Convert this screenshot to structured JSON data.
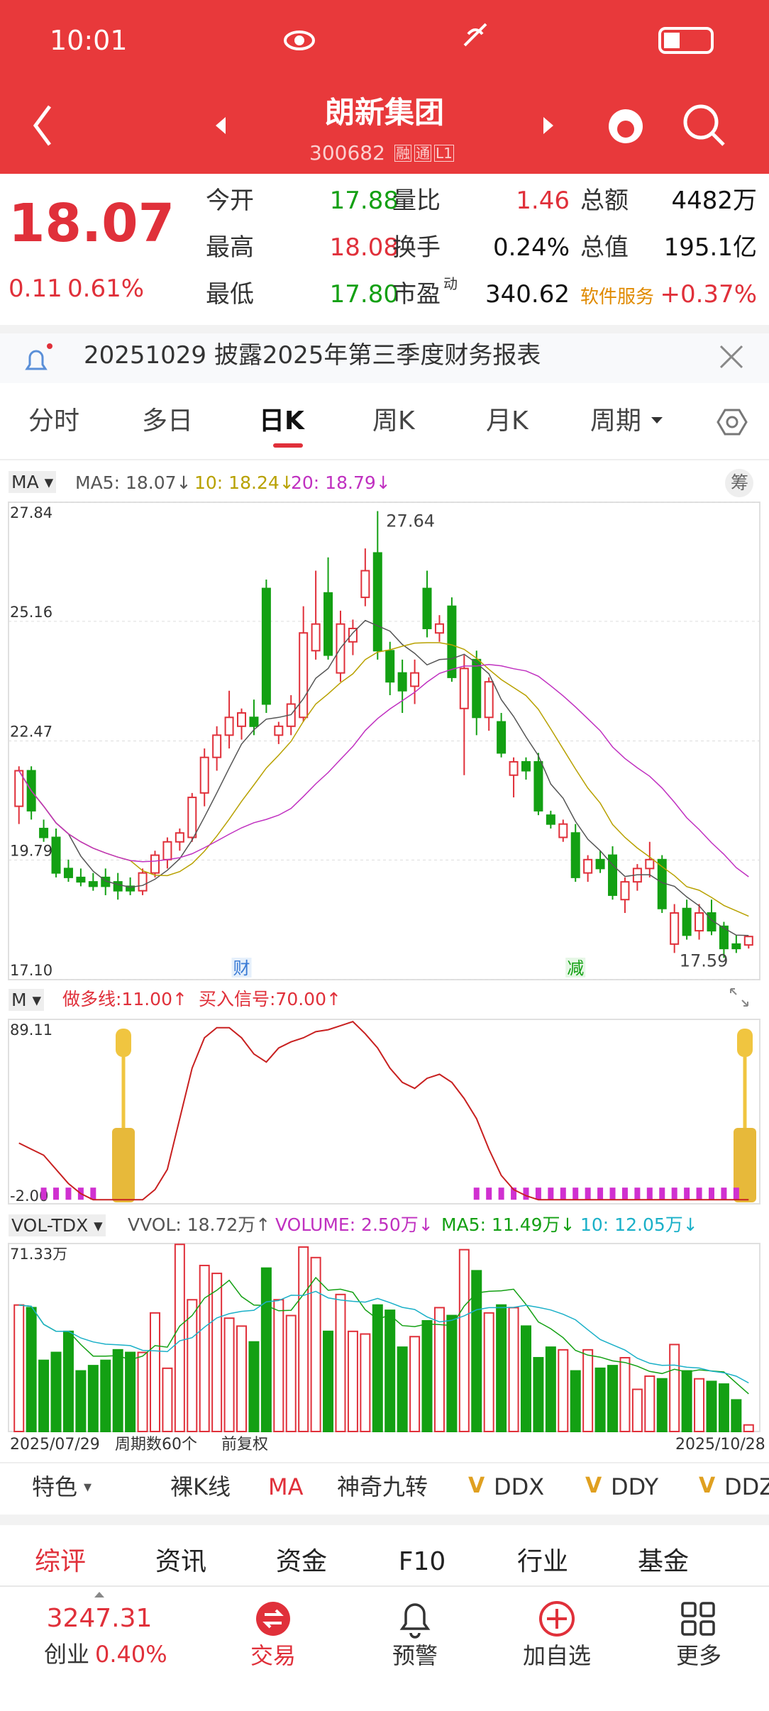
{
  "status_bar": {
    "time": "10:01"
  },
  "header": {
    "title": "朗新集团",
    "code": "300682",
    "badges": [
      "融",
      "通",
      "L1"
    ]
  },
  "quote": {
    "price": "18.07",
    "change": "0.11",
    "change_pct": "0.61%",
    "fields": [
      {
        "label": "今开",
        "value": "17.88"
      },
      {
        "label": "量比",
        "value": "1.46"
      },
      {
        "label": "总额",
        "value": "4482万"
      },
      {
        "label": "最高",
        "value": "18.08"
      },
      {
        "label": "换手",
        "value": "0.24%"
      },
      {
        "label": "总值",
        "value": "195.1亿"
      },
      {
        "label": "最低",
        "value": "17.80"
      },
      {
        "label": "市盈",
        "label_sup": "动",
        "value": "340.62"
      },
      {
        "label": "软件服务",
        "value": "+0.37%"
      }
    ]
  },
  "notice": "20251029 披露2025年第三季度财务报表",
  "tabs": [
    "分时",
    "多日",
    "日K",
    "周K",
    "月K",
    "周期"
  ],
  "chart": {
    "type": "candlestick",
    "ma_legend": {
      "label": "MA",
      "items": [
        "MA5: 18.07↓",
        "10: 18.24↓",
        "20: 18.79↓"
      ]
    },
    "chip_button": "筹",
    "ylim": [
      17.1,
      27.84
    ],
    "yticks": [
      27.84,
      25.16,
      22.47,
      19.79,
      {
        "value": 17.1,
        "label": "17.10"
      }
    ],
    "high_label": "27.64",
    "low_label": "17.59",
    "events": [
      {
        "index": 18,
        "label": "财"
      },
      {
        "index": 45,
        "label": "减"
      }
    ],
    "candles": [
      [
        21.0,
        21.9,
        20.6,
        21.8
      ],
      [
        21.8,
        21.9,
        20.7,
        20.9
      ],
      [
        20.5,
        20.7,
        20.2,
        20.3
      ],
      [
        20.3,
        20.5,
        19.4,
        19.5
      ],
      [
        19.6,
        19.8,
        19.3,
        19.4
      ],
      [
        19.4,
        19.6,
        19.2,
        19.3
      ],
      [
        19.3,
        19.5,
        19.1,
        19.2
      ],
      [
        19.4,
        19.6,
        19.0,
        19.2
      ],
      [
        19.3,
        19.5,
        18.9,
        19.1
      ],
      [
        19.2,
        19.4,
        19.0,
        19.1
      ],
      [
        19.1,
        19.6,
        19.0,
        19.5
      ],
      [
        19.5,
        20.0,
        19.4,
        19.9
      ],
      [
        19.8,
        20.3,
        19.6,
        20.2
      ],
      [
        20.2,
        20.5,
        20.0,
        20.4
      ],
      [
        20.3,
        21.3,
        20.2,
        21.2
      ],
      [
        21.3,
        22.3,
        21.0,
        22.1
      ],
      [
        22.1,
        22.8,
        21.8,
        22.6
      ],
      [
        22.6,
        23.6,
        22.3,
        23.0
      ],
      [
        22.8,
        23.2,
        22.5,
        23.1
      ],
      [
        23.0,
        23.4,
        22.6,
        22.8
      ],
      [
        25.9,
        26.1,
        23.1,
        23.3
      ],
      [
        22.6,
        22.9,
        22.4,
        22.8
      ],
      [
        22.8,
        23.5,
        22.6,
        23.3
      ],
      [
        23.0,
        25.5,
        22.9,
        24.9
      ],
      [
        24.5,
        26.3,
        24.3,
        25.1
      ],
      [
        25.8,
        26.6,
        24.3,
        24.4
      ],
      [
        24.0,
        25.4,
        23.8,
        25.1
      ],
      [
        24.7,
        25.2,
        24.4,
        25.0
      ],
      [
        25.7,
        26.8,
        25.5,
        26.3
      ],
      [
        26.7,
        27.64,
        24.3,
        24.5
      ],
      [
        24.5,
        24.7,
        23.5,
        23.8
      ],
      [
        24.0,
        24.3,
        23.1,
        23.6
      ],
      [
        23.7,
        24.3,
        23.3,
        24.0
      ],
      [
        25.9,
        26.3,
        24.8,
        25.0
      ],
      [
        24.9,
        25.3,
        24.7,
        25.1
      ],
      [
        25.5,
        25.7,
        23.8,
        23.9
      ],
      [
        23.2,
        24.4,
        21.7,
        24.1
      ],
      [
        24.3,
        24.5,
        22.6,
        23.0
      ],
      [
        23.0,
        23.9,
        22.7,
        23.8
      ],
      [
        22.9,
        23.1,
        22.1,
        22.2
      ],
      [
        21.7,
        22.1,
        21.2,
        22.0
      ],
      [
        22.0,
        22.1,
        21.6,
        21.8
      ],
      [
        22.0,
        22.2,
        20.8,
        20.9
      ],
      [
        20.8,
        20.9,
        20.5,
        20.6
      ],
      [
        20.3,
        20.7,
        20.2,
        20.6
      ],
      [
        20.4,
        20.6,
        19.3,
        19.4
      ],
      [
        19.5,
        19.9,
        19.3,
        19.8
      ],
      [
        19.8,
        20.0,
        19.5,
        19.6
      ],
      [
        19.9,
        20.1,
        18.9,
        19.0
      ],
      [
        18.9,
        19.4,
        18.6,
        19.3
      ],
      [
        19.3,
        19.7,
        19.1,
        19.6
      ],
      [
        19.6,
        20.2,
        19.4,
        19.8
      ],
      [
        19.8,
        19.9,
        18.6,
        18.7
      ],
      [
        17.9,
        18.8,
        17.7,
        18.6
      ],
      [
        18.7,
        18.9,
        18.0,
        18.1
      ],
      [
        18.2,
        18.8,
        18.0,
        18.6
      ],
      [
        18.6,
        18.9,
        18.1,
        18.2
      ],
      [
        18.3,
        18.4,
        17.59,
        17.8
      ],
      [
        17.9,
        18.1,
        17.7,
        17.8
      ],
      [
        17.88,
        18.08,
        17.8,
        18.07
      ]
    ]
  },
  "m_indicator": {
    "label": "M",
    "legend": [
      "做多线:11.00↑",
      "买入信号:70.00↑"
    ],
    "ylim": [
      -2,
      89.11
    ],
    "yticks": [
      89.11,
      {
        "value": -2,
        "label": "-2.00"
      }
    ],
    "line": [
      28,
      25,
      22,
      15,
      8,
      3,
      0,
      0,
      0,
      0,
      0,
      5,
      15,
      40,
      65,
      80,
      85,
      85,
      80,
      72,
      68,
      75,
      78,
      80,
      83,
      84,
      86,
      88,
      82,
      75,
      65,
      58,
      55,
      60,
      62,
      58,
      50,
      40,
      25,
      12,
      5,
      2,
      0,
      0,
      0,
      0,
      0,
      0,
      0,
      0,
      0,
      0,
      0,
      0,
      0,
      0,
      0,
      0,
      0,
      0
    ],
    "bars": [
      null,
      null,
      6,
      6,
      6,
      6,
      6,
      null,
      null,
      null,
      null,
      null,
      null,
      null,
      null,
      null,
      null,
      null,
      null,
      null,
      null,
      null,
      null,
      null,
      null,
      null,
      null,
      null,
      null,
      null,
      null,
      null,
      null,
      null,
      null,
      null,
      null,
      6,
      6,
      6,
      6,
      6,
      6,
      6,
      6,
      6,
      6,
      6,
      6,
      6,
      6,
      6,
      6,
      6,
      6,
      6,
      6,
      6,
      6,
      null
    ]
  },
  "volume": {
    "label": "VOL-TDX",
    "legend": [
      "VVOL: 18.72万↑",
      "VOLUME: 2.50万↓",
      "MA5: 11.49万↓",
      "10: 12.05万↓"
    ],
    "ylim": [
      0,
      71.33
    ],
    "yticks": [
      {
        "value": 71.33,
        "label": "71.33万"
      }
    ],
    "values": [
      48,
      47,
      27,
      30,
      38,
      23,
      25,
      27,
      31,
      30,
      30,
      45,
      24,
      71,
      50,
      63,
      60,
      43,
      40,
      34,
      62,
      50,
      44,
      70,
      66,
      38,
      52,
      38,
      37,
      48,
      46,
      32,
      36,
      42,
      47,
      44,
      69,
      61,
      45,
      48,
      47,
      40,
      28,
      32,
      31,
      23,
      31,
      24,
      25,
      28,
      16,
      21,
      20,
      33,
      23,
      20,
      19,
      18,
      12,
      2.5
    ]
  },
  "footer_axis": {
    "start": "2025/07/29",
    "period": "周期数60个",
    "adjust": "前复权",
    "end": "2025/10/28"
  },
  "features": [
    "特色",
    "裸K线",
    "MA",
    "神奇九转",
    "DDX",
    "DDY",
    "DDZ"
  ],
  "section_tabs": [
    "综评",
    "资讯",
    "资金",
    "F10",
    "行业",
    "基金"
  ],
  "bottom_nav": {
    "index_value": "3247.31",
    "index_name": "创业",
    "index_pct": "0.40%",
    "items": [
      "交易",
      "预警",
      "加自选",
      "更多"
    ]
  }
}
